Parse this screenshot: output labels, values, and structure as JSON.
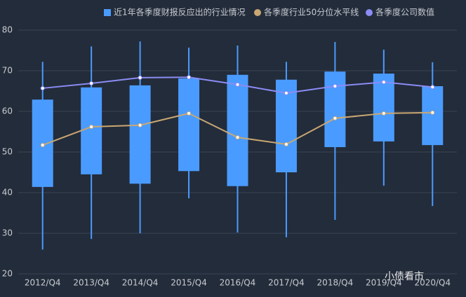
{
  "chart_data": {
    "type": "boxplot",
    "categories": [
      "2012/Q4",
      "2013/Q4",
      "2014/Q4",
      "2015/Q4",
      "2016/Q4",
      "2017/Q4",
      "2018/Q4",
      "2019/Q4",
      "2020/Q4"
    ],
    "boxes": {
      "name": "近1年各季度财报反应出的行业情况",
      "color": "#4a9bff",
      "values": [
        [
          26.0,
          41.4,
          62.9,
          72.2
        ],
        [
          28.6,
          44.5,
          65.9,
          76.0
        ],
        [
          30.0,
          42.2,
          66.4,
          77.2
        ],
        [
          38.6,
          45.3,
          68.1,
          75.7
        ],
        [
          30.2,
          41.6,
          69.0,
          76.2
        ],
        [
          29.0,
          45.0,
          67.8,
          72.2
        ],
        [
          33.3,
          51.2,
          69.8,
          77.1
        ],
        [
          41.7,
          52.6,
          69.3,
          75.2
        ],
        [
          36.7,
          51.7,
          66.2,
          72.1
        ]
      ]
    },
    "series": [
      {
        "name": "各季度行业50分位水平线",
        "color": "#c9a773",
        "values": [
          51.7,
          56.2,
          56.6,
          59.5,
          53.6,
          51.9,
          58.3,
          59.5,
          59.7
        ]
      },
      {
        "name": "各季度公司数值",
        "color": "#8b8cf4",
        "values": [
          65.7,
          66.9,
          68.3,
          68.4,
          66.6,
          64.5,
          66.2,
          67.2,
          66.0
        ]
      }
    ],
    "ylim": [
      20,
      80
    ],
    "yticks": [
      20,
      30,
      40,
      50,
      60,
      70,
      80
    ],
    "grid": true,
    "watermark": "小债看市"
  }
}
